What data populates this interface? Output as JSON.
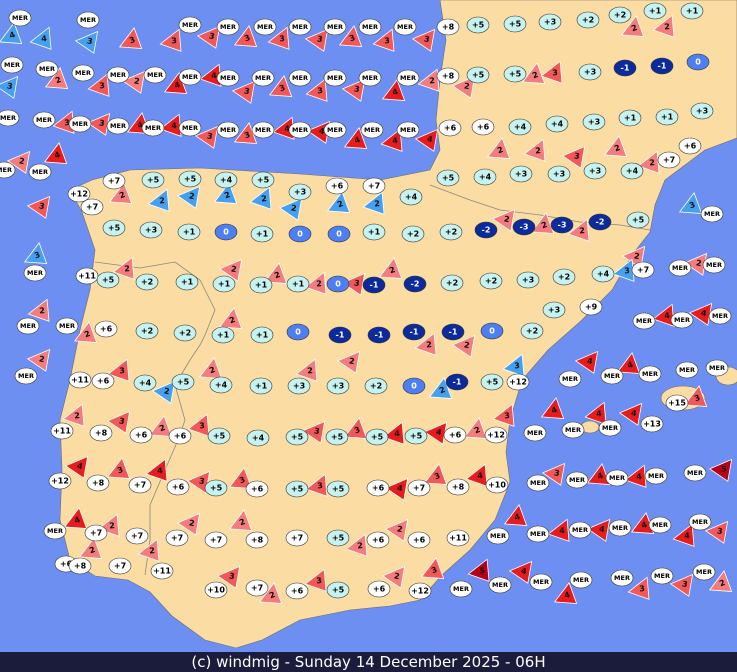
{
  "caption": "(c) windmig - Sunday 14 December 2025 - 06H",
  "stations": [
    "MER",
    "MER",
    "MER",
    "MER",
    "MER",
    "MER",
    "MER",
    "MER",
    "MER",
    "+8",
    "+5",
    "+5",
    "+3",
    "+2",
    "+2",
    "+1",
    "+1",
    "MER",
    "MER",
    "MER",
    "MER",
    "MER",
    "MER",
    "MER",
    "MER",
    "MER",
    "MER",
    "MER",
    "MER",
    "+8",
    "+5",
    "+5",
    "+3",
    "-1",
    "-1",
    "0",
    "MER",
    "MER",
    "MER",
    "MER",
    "MER",
    "MER",
    "MER",
    "MER",
    "MER",
    "MER",
    "MER",
    "MER",
    "+6",
    "+6",
    "+4",
    "+4",
    "+3",
    "+1",
    "+1",
    "+3",
    "MER",
    "MER",
    "+7",
    "+5",
    "+5",
    "+4",
    "+5",
    "+12",
    "+3",
    "+6",
    "+7",
    "+4",
    "+5",
    "+4",
    "+3",
    "+3",
    "+3",
    "+4",
    "+7",
    "+6",
    "+7",
    "+5",
    "+3",
    "+1",
    "0",
    "+1",
    "0",
    "0",
    "+1",
    "+2",
    "+2",
    "-2",
    "-3",
    "-3",
    "-2",
    "+5",
    "MER",
    "MER",
    "+11",
    "+5",
    "+2",
    "+1",
    "+1",
    "+1",
    "+1",
    "0",
    "-1",
    "-2",
    "+2",
    "+2",
    "+3",
    "+2",
    "+4",
    "+7",
    "MER",
    "MER",
    "MER",
    "MER",
    "+6",
    "+2",
    "+2",
    "+1",
    "+1",
    "0",
    "-1",
    "-1",
    "-1",
    "-1",
    "0",
    "+2",
    "+3",
    "+9",
    "MER",
    "MER",
    "MER",
    "MER",
    "+11",
    "+6",
    "+4",
    "+5",
    "+4",
    "+1",
    "+3",
    "+3",
    "+2",
    "0",
    "-1",
    "+5",
    "+12",
    "MER",
    "MER",
    "MER",
    "MER",
    "MER",
    "+15",
    "+11",
    "+8",
    "+6",
    "+6",
    "+5",
    "+4",
    "+5",
    "+5",
    "+5",
    "+5",
    "+6",
    "+12",
    "MER",
    "MER",
    "MER",
    "+13",
    "+12",
    "+8",
    "+7",
    "+6",
    "+5",
    "+6",
    "+5",
    "+5",
    "+6",
    "+7",
    "+8",
    "+10",
    "MER",
    "MER",
    "MER",
    "MER",
    "MER",
    "MER",
    "+7",
    "+7",
    "+7",
    "+7",
    "+8",
    "+7",
    "+5",
    "+6",
    "+6",
    "+11",
    "MER",
    "MER",
    "MER",
    "MER",
    "MER",
    "MER",
    "+6",
    "+8",
    "+7",
    "+11",
    "+10",
    "+7",
    "+6",
    "+5",
    "+6",
    "+12",
    "MER",
    "MER",
    "MER",
    "MER",
    "MER",
    "MER",
    "MER"
  ],
  "winds": [
    {
      "force": 4,
      "color": "#45a0f0"
    },
    {
      "force": 4,
      "color": "#45a0f0"
    },
    {
      "force": 3,
      "color": "#45a0f0"
    },
    {
      "force": 3,
      "color": "#f25858"
    },
    {
      "force": 3,
      "color": "#f25858"
    },
    {
      "force": 3,
      "color": "#f25858"
    },
    {
      "force": 3,
      "color": "#f25858"
    },
    {
      "force": 3,
      "color": "#f25858"
    },
    {
      "force": 3,
      "color": "#f25858"
    },
    {
      "force": 3,
      "color": "#f25858"
    },
    {
      "force": 3,
      "color": "#f25858"
    },
    {
      "force": 3,
      "color": "#f25858"
    },
    {
      "force": 2,
      "color": "#f47c7c"
    },
    {
      "force": 2,
      "color": "#f47c7c"
    },
    {
      "force": 3,
      "color": "#45a0f0"
    },
    {
      "force": 2,
      "color": "#f47c7c"
    },
    {
      "force": 3,
      "color": "#f25858"
    },
    {
      "force": 2,
      "color": "#f47c7c"
    },
    {
      "force": 4,
      "color": "#e81c1c"
    },
    {
      "force": 4,
      "color": "#e81c1c"
    },
    {
      "force": 3,
      "color": "#f25858"
    },
    {
      "force": 3,
      "color": "#f25858"
    },
    {
      "force": 3,
      "color": "#f25858"
    },
    {
      "force": 3,
      "color": "#f25858"
    },
    {
      "force": 4,
      "color": "#e81c1c"
    },
    {
      "force": 2,
      "color": "#f47c7c"
    },
    {
      "force": 2,
      "color": "#f47c7c"
    },
    {
      "force": 2,
      "color": "#f47c7c"
    },
    {
      "force": 3,
      "color": "#f25858"
    },
    {
      "force": 2,
      "color": "#f47c7c"
    },
    {
      "force": 4,
      "color": "#e81c1c"
    },
    {
      "force": 3,
      "color": "#f25858"
    },
    {
      "force": 3,
      "color": "#f25858"
    },
    {
      "force": 4,
      "color": "#e81c1c"
    },
    {
      "force": 4,
      "color": "#e81c1c"
    },
    {
      "force": 3,
      "color": "#f25858"
    },
    {
      "force": 3,
      "color": "#f25858"
    },
    {
      "force": 4,
      "color": "#e81c1c"
    },
    {
      "force": 4,
      "color": "#e81c1c"
    },
    {
      "force": 4,
      "color": "#e81c1c"
    },
    {
      "force": 4,
      "color": "#e81c1c"
    },
    {
      "force": 4,
      "color": "#e81c1c"
    },
    {
      "force": 2,
      "color": "#f47c7c"
    },
    {
      "force": 2,
      "color": "#f47c7c"
    },
    {
      "force": 3,
      "color": "#f25858"
    },
    {
      "force": 2,
      "color": "#f47c7c"
    },
    {
      "force": 2,
      "color": "#f47c7c"
    },
    {
      "force": 3,
      "color": "#f25858"
    },
    {
      "force": 3,
      "color": "#45a0f0"
    },
    {
      "force": 2,
      "color": "#f47c7c"
    },
    {
      "force": 2,
      "color": "#f47c7c"
    },
    {
      "force": 2,
      "color": "#f47c7c"
    },
    {
      "force": 2,
      "color": "#45a0f0"
    },
    {
      "force": 2,
      "color": "#45a0f0"
    },
    {
      "force": 2,
      "color": "#45a0f0"
    },
    {
      "force": 2,
      "color": "#45a0f0"
    },
    {
      "force": 2,
      "color": "#45a0f0"
    },
    {
      "force": 2,
      "color": "#45a0f0"
    },
    {
      "force": 2,
      "color": "#45a0f0"
    },
    {
      "force": 2,
      "color": "#f47c7c"
    },
    {
      "force": 2,
      "color": "#f47c7c"
    },
    {
      "force": 2,
      "color": "#f47c7c"
    },
    {
      "force": 2,
      "color": "#f47c7c"
    },
    {
      "force": 3,
      "color": "#45a0f0"
    },
    {
      "force": 2,
      "color": "#f47c7c"
    },
    {
      "force": 2,
      "color": "#f47c7c"
    },
    {
      "force": 2,
      "color": "#f47c7c"
    },
    {
      "force": 2,
      "color": "#f47c7c"
    },
    {
      "force": 3,
      "color": "#f25858"
    },
    {
      "force": 2,
      "color": "#f47c7c"
    },
    {
      "force": 3,
      "color": "#45a0f0"
    },
    {
      "force": 2,
      "color": "#f47c7c"
    },
    {
      "force": 2,
      "color": "#f47c7c"
    },
    {
      "force": 2,
      "color": "#f47c7c"
    },
    {
      "force": 2,
      "color": "#f47c7c"
    },
    {
      "force": 2,
      "color": "#f47c7c"
    },
    {
      "force": 3,
      "color": "#f25858"
    },
    {
      "force": 2,
      "color": "#45a0f0"
    },
    {
      "force": 2,
      "color": "#f47c7c"
    },
    {
      "force": 2,
      "color": "#f47c7c"
    },
    {
      "force": 2,
      "color": "#f47c7c"
    },
    {
      "force": 2,
      "color": "#45a0f0"
    },
    {
      "force": 3,
      "color": "#45a0f0"
    },
    {
      "force": 4,
      "color": "#e81c1c"
    },
    {
      "force": 4,
      "color": "#e81c1c"
    },
    {
      "force": 4,
      "color": "#e81c1c"
    },
    {
      "force": 4,
      "color": "#e81c1c"
    },
    {
      "force": 4,
      "color": "#e81c1c"
    },
    {
      "force": 4,
      "color": "#e81c1c"
    },
    {
      "force": 4,
      "color": "#e81c1c"
    },
    {
      "force": 3,
      "color": "#f25858"
    },
    {
      "force": 2,
      "color": "#f47c7c"
    },
    {
      "force": 3,
      "color": "#f25858"
    },
    {
      "force": 2,
      "color": "#f47c7c"
    },
    {
      "force": 3,
      "color": "#f25858"
    },
    {
      "force": 3,
      "color": "#f25858"
    },
    {
      "force": 3,
      "color": "#f25858"
    },
    {
      "force": 4,
      "color": "#e81c1c"
    },
    {
      "force": 4,
      "color": "#e81c1c"
    },
    {
      "force": 2,
      "color": "#f47c7c"
    },
    {
      "force": 3,
      "color": "#f25858"
    },
    {
      "force": 4,
      "color": "#e81c1c"
    },
    {
      "force": 3,
      "color": "#f25858"
    },
    {
      "force": 4,
      "color": "#e81c1c"
    },
    {
      "force": 3,
      "color": "#f25858"
    },
    {
      "force": 3,
      "color": "#f25858"
    },
    {
      "force": 3,
      "color": "#f25858"
    },
    {
      "force": 4,
      "color": "#e81c1c"
    },
    {
      "force": 3,
      "color": "#f25858"
    },
    {
      "force": 4,
      "color": "#e81c1c"
    },
    {
      "force": 3,
      "color": "#f25858"
    },
    {
      "force": 4,
      "color": "#e81c1c"
    },
    {
      "force": 4,
      "color": "#e81c1c"
    },
    {
      "force": 5,
      "color": "#b80018"
    },
    {
      "force": 4,
      "color": "#e81c1c"
    },
    {
      "force": 2,
      "color": "#f47c7c"
    },
    {
      "force": 2,
      "color": "#f47c7c"
    },
    {
      "force": 2,
      "color": "#f47c7c"
    },
    {
      "force": 2,
      "color": "#f47c7c"
    },
    {
      "force": 2,
      "color": "#f47c7c"
    },
    {
      "force": 4,
      "color": "#e81c1c"
    },
    {
      "force": 4,
      "color": "#e81c1c"
    },
    {
      "force": 4,
      "color": "#e81c1c"
    },
    {
      "force": 4,
      "color": "#e81c1c"
    },
    {
      "force": 4,
      "color": "#e81c1c"
    },
    {
      "force": 3,
      "color": "#f25858"
    },
    {
      "force": 2,
      "color": "#f47c7c"
    },
    {
      "force": 2,
      "color": "#f47c7c"
    },
    {
      "force": 3,
      "color": "#f25858"
    },
    {
      "force": 2,
      "color": "#f47c7c"
    },
    {
      "force": 3,
      "color": "#f25858"
    },
    {
      "force": 2,
      "color": "#f47c7c"
    },
    {
      "force": 3,
      "color": "#f25858"
    },
    {
      "force": 5,
      "color": "#b80018"
    },
    {
      "force": 4,
      "color": "#e81c1c"
    },
    {
      "force": 4,
      "color": "#e81c1c"
    },
    {
      "force": 3,
      "color": "#f25858"
    },
    {
      "force": 3,
      "color": "#f25858"
    },
    {
      "force": 2,
      "color": "#f47c7c"
    }
  ]
}
